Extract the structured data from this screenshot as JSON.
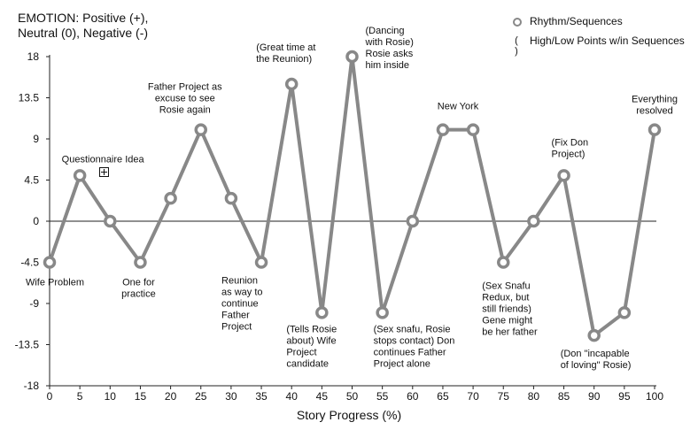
{
  "chart_data": {
    "type": "line",
    "ylabel": "EMOTION: Positive (+),\nNeutral (0), Negative (-)",
    "xlabel": "Story Progress (%)",
    "x": [
      0,
      5,
      10,
      15,
      20,
      25,
      30,
      35,
      40,
      45,
      50,
      55,
      60,
      65,
      70,
      75,
      80,
      85,
      90,
      95,
      100
    ],
    "series": [
      {
        "name": "Rhythm/Sequences",
        "values": [
          -4.5,
          5,
          0,
          -4.5,
          2.5,
          10,
          2.5,
          -4.5,
          15,
          -10,
          18,
          -10,
          0,
          10,
          10,
          -4.5,
          0,
          5,
          -12.5,
          -10,
          10
        ]
      }
    ],
    "xlim": [
      0,
      100
    ],
    "ylim": [
      -18,
      18
    ],
    "x_ticks": [
      "0",
      "5",
      "10",
      "15",
      "20",
      "25",
      "30",
      "35",
      "40",
      "45",
      "50",
      "55",
      "60",
      "65",
      "70",
      "75",
      "80",
      "85",
      "90",
      "95",
      "100"
    ],
    "y_ticks": [
      {
        "value": 18,
        "label": "18"
      },
      {
        "value": 13.5,
        "label": "13.5"
      },
      {
        "value": 9,
        "label": "9"
      },
      {
        "value": 4.5,
        "label": "4.5"
      },
      {
        "value": 0,
        "label": "0"
      },
      {
        "value": -4.5,
        "label": "-4.5"
      },
      {
        "value": -9,
        "label": "-9"
      },
      {
        "value": -13.5,
        "label": "-13.5"
      },
      {
        "value": -18,
        "label": "-18"
      }
    ],
    "legend": {
      "position": "top-right",
      "items": [
        {
          "symbol": "ring",
          "label": "Rhythm/Sequences"
        },
        {
          "symbol": "( )",
          "label": "High/Low Points w/in Sequences"
        }
      ]
    },
    "annotations": [
      {
        "x": 0,
        "lines": [
          "Wife Problem"
        ]
      },
      {
        "x": 5,
        "lines": [
          "Questionnaire Idea"
        ]
      },
      {
        "x": 15,
        "lines": [
          "One for",
          "practice"
        ]
      },
      {
        "x": 25,
        "lines": [
          "Father Project as",
          "excuse to see",
          "Rosie again"
        ]
      },
      {
        "x": 35,
        "lines": [
          "Reunion",
          "as way to",
          "continue",
          "Father",
          "Project"
        ]
      },
      {
        "x": 40,
        "lines": [
          "(Great time at",
          "the Reunion)"
        ]
      },
      {
        "x": 45,
        "lines": [
          "(Tells Rosie",
          "about) Wife",
          "Project",
          "candidate"
        ]
      },
      {
        "x": 50,
        "lines": [
          "(Dancing",
          "with Rosie)",
          "Rosie asks",
          "him inside"
        ]
      },
      {
        "x": 55,
        "lines": [
          "(Sex snafu, Rosie",
          "stops contact) Don",
          "continues Father",
          "Project alone"
        ]
      },
      {
        "x": 67.5,
        "lines": [
          "New York"
        ]
      },
      {
        "x": 75,
        "lines": [
          "(Sex Snafu",
          "Redux, but",
          "still friends)",
          "Gene might",
          "be her father"
        ]
      },
      {
        "x": 85,
        "lines": [
          "(Fix Don",
          "Project)"
        ]
      },
      {
        "x": 90,
        "lines": [
          "(Don \"incapable",
          "of loving\" Rosie)"
        ]
      },
      {
        "x": 100,
        "lines": [
          "Everything",
          "resolved"
        ]
      }
    ],
    "grid": false,
    "zero_line": true
  }
}
